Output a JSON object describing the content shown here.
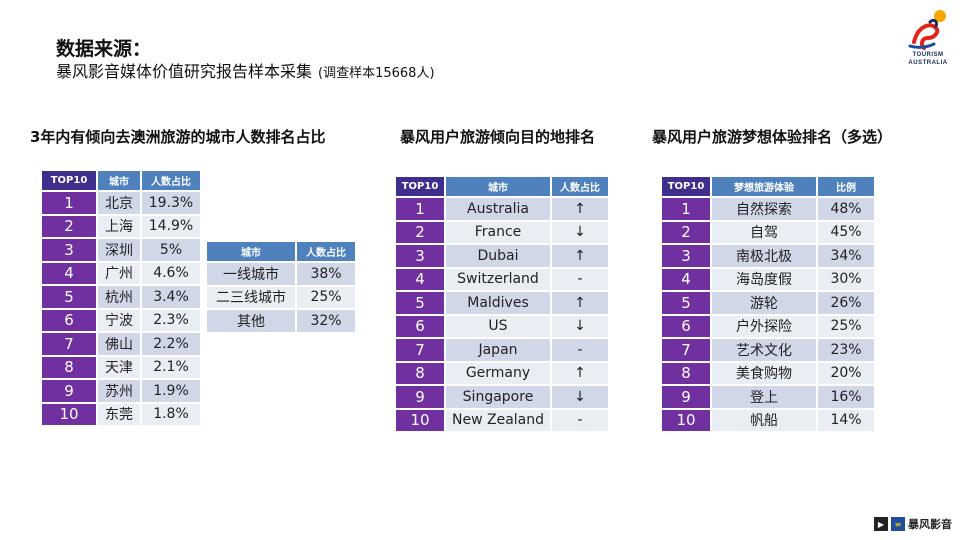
{
  "header": {
    "title": "数据来源：",
    "subtitle": "暴风影音媒体价值研究报告样本采集",
    "note": "(调查样本15668人)"
  },
  "logo": {
    "line1": "TOURISM",
    "line2": "AUSTRALIA"
  },
  "sections": {
    "s1_title": "3年内有倾向去澳洲旅游的城市人数排名占比",
    "s2_title": "暴风用户旅游倾向目的地排名",
    "s3_title": "暴风用户旅游梦想体验排名（多选）"
  },
  "table1": {
    "headers": [
      "TOP10",
      "城市",
      "人数占比"
    ],
    "rows": [
      [
        "1",
        "北京",
        "19.3%"
      ],
      [
        "2",
        "上海",
        "14.9%"
      ],
      [
        "3",
        "深圳",
        "5%"
      ],
      [
        "4",
        "广州",
        "4.6%"
      ],
      [
        "5",
        "杭州",
        "3.4%"
      ],
      [
        "6",
        "宁波",
        "2.3%"
      ],
      [
        "7",
        "佛山",
        "2.2%"
      ],
      [
        "8",
        "天津",
        "2.1%"
      ],
      [
        "9",
        "苏州",
        "1.9%"
      ],
      [
        "10",
        "东莞",
        "1.8%"
      ]
    ]
  },
  "table_tier": {
    "headers": [
      "城市",
      "人数占比"
    ],
    "rows": [
      [
        "一线城市",
        "38%"
      ],
      [
        "二三线城市",
        "25%"
      ],
      [
        "其他",
        "32%"
      ]
    ]
  },
  "table2": {
    "headers": [
      "TOP10",
      "城市",
      "人数占比"
    ],
    "rows": [
      [
        "1",
        "Australia",
        "↑"
      ],
      [
        "2",
        "France",
        "↓"
      ],
      [
        "3",
        "Dubai",
        "↑"
      ],
      [
        "4",
        "Switzerland",
        "-"
      ],
      [
        "5",
        "Maldives",
        "↑"
      ],
      [
        "6",
        "US",
        "↓"
      ],
      [
        "7",
        "Japan",
        "-"
      ],
      [
        "8",
        "Germany",
        "↑"
      ],
      [
        "9",
        "Singapore",
        "↓"
      ],
      [
        "10",
        "New Zealand",
        "-"
      ]
    ]
  },
  "table3": {
    "headers": [
      "TOP10",
      "梦想旅游体验",
      "比例"
    ],
    "rows": [
      [
        "1",
        "自然探索",
        "48%"
      ],
      [
        "2",
        "自驾",
        "45%"
      ],
      [
        "3",
        "南极北极",
        "34%"
      ],
      [
        "4",
        "海岛度假",
        "30%"
      ],
      [
        "5",
        "游轮",
        "26%"
      ],
      [
        "6",
        "户外探险",
        "25%"
      ],
      [
        "7",
        "艺术文化",
        "23%"
      ],
      [
        "8",
        "美食购物",
        "20%"
      ],
      [
        "9",
        "登上",
        "16%"
      ],
      [
        "10",
        "帆船",
        "14%"
      ]
    ]
  },
  "footer": {
    "brand": "暴风影音"
  },
  "colors": {
    "header_blue": "#4f81bd",
    "rank_purple": "#7030a0",
    "row_light": "#e9edf4",
    "row_dark": "#d0d8e8"
  }
}
